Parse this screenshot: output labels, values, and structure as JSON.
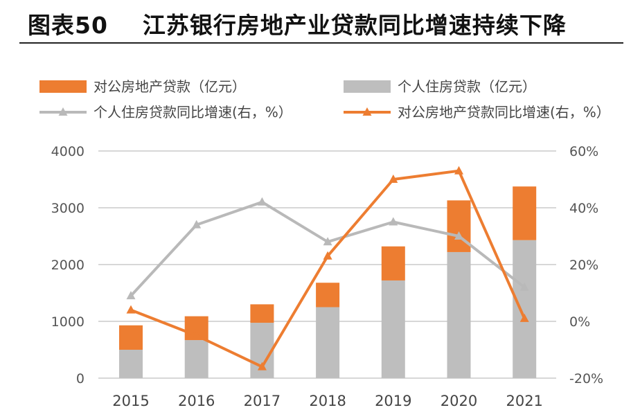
{
  "header": {
    "title": "图表50    江苏银行房地产业贷款同比增速持续下降"
  },
  "colors": {
    "orange": "#ED7D31",
    "gray": "#BEBEBE",
    "gray_line": "#B9B9B9",
    "axis": "#BFBFBF"
  },
  "chart_data": {
    "type": "bar",
    "categories": [
      "2015",
      "2016",
      "2017",
      "2018",
      "2019",
      "2020",
      "2021"
    ],
    "series": [
      {
        "name": "个人住房贷款（亿元）",
        "type": "bar",
        "stack": "total",
        "axis": "left",
        "values": [
          500,
          670,
          975,
          1250,
          1720,
          2220,
          2430
        ]
      },
      {
        "name": "对公房地产贷款（亿元）",
        "type": "bar",
        "stack": "total",
        "axis": "left",
        "values": [
          430,
          420,
          325,
          430,
          600,
          910,
          945
        ]
      },
      {
        "name": "个人住房贷款同比增速(右，%）",
        "type": "line",
        "axis": "right",
        "values": [
          9,
          34,
          42,
          28,
          35,
          30,
          12
        ]
      },
      {
        "name": "对公房地产贷款同比增速(右，%）",
        "type": "line",
        "axis": "right",
        "values": [
          4,
          -5,
          -16,
          23,
          50,
          53,
          1
        ]
      }
    ],
    "y_left": {
      "lim": [
        0,
        4000
      ],
      "ticks": [
        0,
        1000,
        2000,
        3000,
        4000
      ],
      "tick_labels": [
        "0",
        "1000",
        "2000",
        "3000",
        "4000"
      ]
    },
    "y_right": {
      "lim": [
        -20,
        60
      ],
      "ticks": [
        -20,
        0,
        20,
        40,
        60
      ],
      "tick_labels": [
        "-20%",
        "0%",
        "20%",
        "40%",
        "60%"
      ]
    },
    "grid": true,
    "legend": "top"
  }
}
